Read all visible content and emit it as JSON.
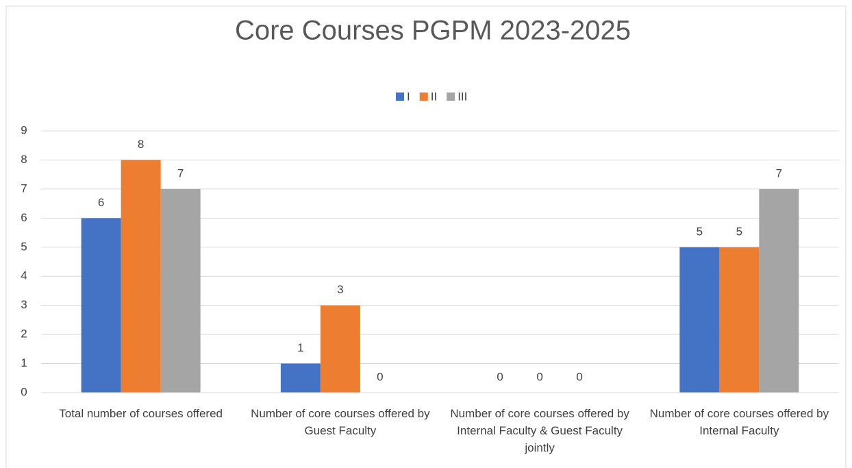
{
  "chart_data": {
    "type": "bar",
    "title": "Core Courses PGPM 2023-2025",
    "categories": [
      "Total number of courses offered",
      "Number of core courses offered by Guest Faculty",
      "Number of core courses offered by Internal Faculty & Guest Faculty jointly",
      "Number of core courses offered by Internal Faculty"
    ],
    "series": [
      {
        "name": "I",
        "color": "#4472c4",
        "values": [
          6,
          1,
          0,
          5
        ]
      },
      {
        "name": "II",
        "color": "#ed7d31",
        "values": [
          8,
          3,
          0,
          5
        ]
      },
      {
        "name": "III",
        "color": "#a5a5a5",
        "values": [
          7,
          0,
          0,
          7
        ]
      }
    ],
    "ylim": [
      0,
      9
    ],
    "yticks": [
      0,
      1,
      2,
      3,
      4,
      5,
      6,
      7,
      8,
      9
    ],
    "grid": true,
    "legend": "top"
  }
}
